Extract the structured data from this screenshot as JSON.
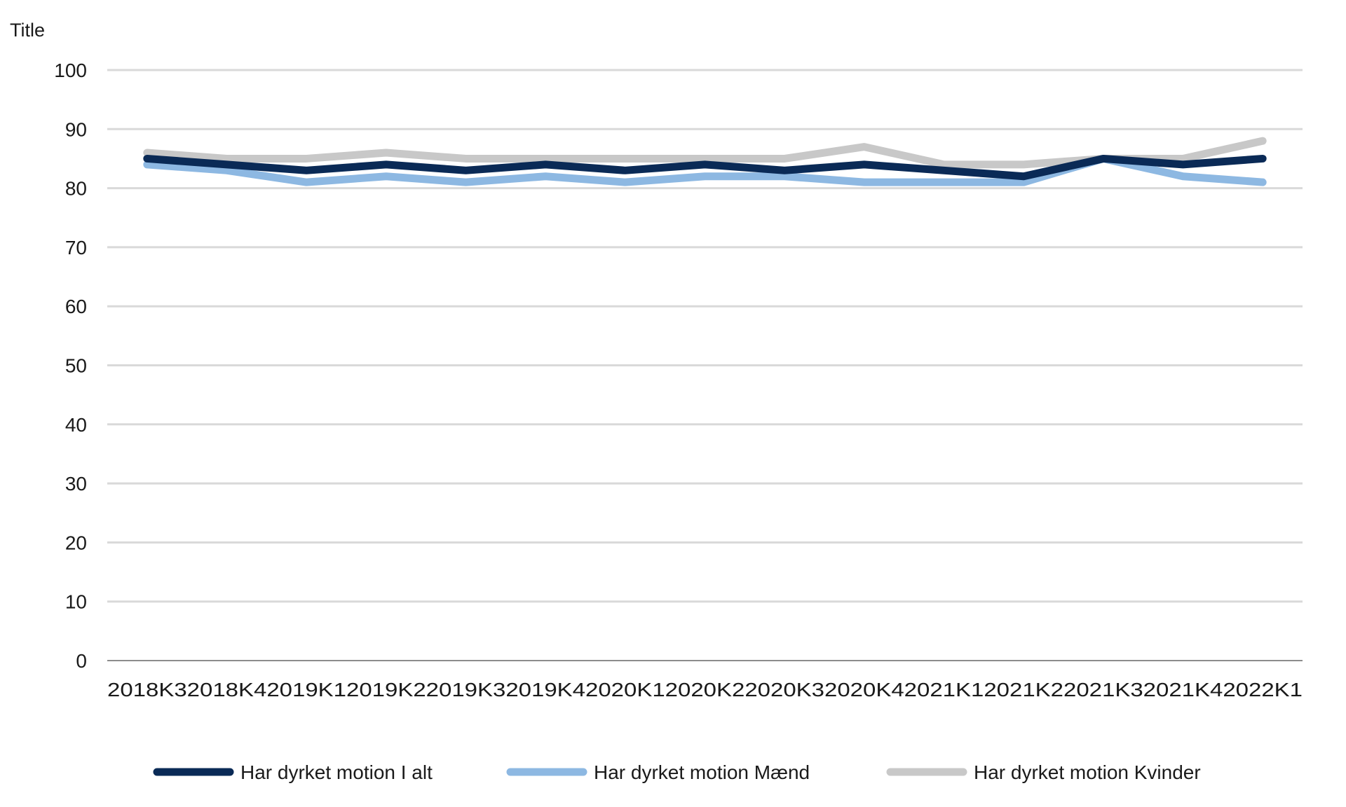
{
  "chart_data": {
    "type": "line",
    "ylabel": "Title",
    "ylim": [
      0,
      100
    ],
    "yticks": [
      0,
      10,
      20,
      30,
      40,
      50,
      60,
      70,
      80,
      90,
      100
    ],
    "grid": true,
    "legend_position": "bottom",
    "categories": [
      "2018K3",
      "2018K4",
      "2019K1",
      "2019K2",
      "2019K3",
      "2019K4",
      "2020K1",
      "2020K2",
      "2020K3",
      "2020K4",
      "2021K1",
      "2021K2",
      "2021K3",
      "2021K4",
      "2022K1"
    ],
    "series": [
      {
        "name": "Har dyrket motion I alt",
        "color": "#0a2a56",
        "values": [
          85,
          84,
          83,
          84,
          83,
          84,
          83,
          84,
          83,
          84,
          83,
          82,
          85,
          84,
          85
        ]
      },
      {
        "name": "Har dyrket motion Mænd",
        "color": "#8db8e2",
        "values": [
          84,
          83,
          81,
          82,
          81,
          82,
          81,
          82,
          82,
          81,
          81,
          81,
          85,
          82,
          81
        ]
      },
      {
        "name": "Har dyrket motion Kvinder",
        "color": "#c8c8c8",
        "values": [
          86,
          85,
          85,
          86,
          85,
          85,
          85,
          85,
          85,
          87,
          84,
          84,
          85,
          85,
          88
        ]
      }
    ]
  }
}
